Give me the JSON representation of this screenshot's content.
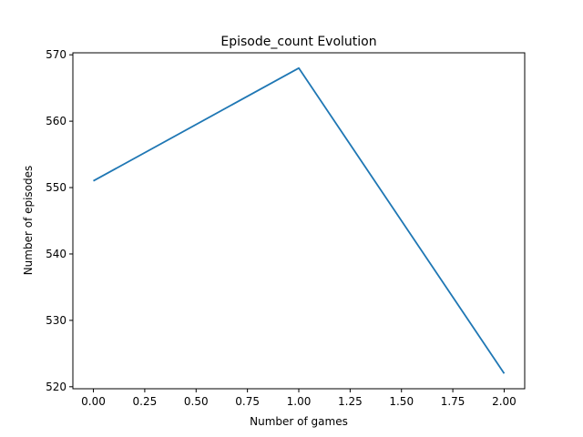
{
  "chart_data": {
    "type": "line",
    "title": "Episode_count Evolution",
    "xlabel": "Number of games",
    "ylabel": "Number of episodes",
    "xlim": [
      -0.1,
      2.1
    ],
    "ylim": [
      519.7,
      570.3
    ],
    "xticks": [
      "0.00",
      "0.25",
      "0.50",
      "0.75",
      "1.00",
      "1.25",
      "1.50",
      "1.75",
      "2.00"
    ],
    "yticks": [
      "520",
      "530",
      "540",
      "550",
      "560",
      "570"
    ],
    "grid": false,
    "series": [
      {
        "color": "#1f77b4",
        "x": [
          0,
          1,
          2
        ],
        "y": [
          551,
          568,
          522
        ]
      }
    ]
  }
}
